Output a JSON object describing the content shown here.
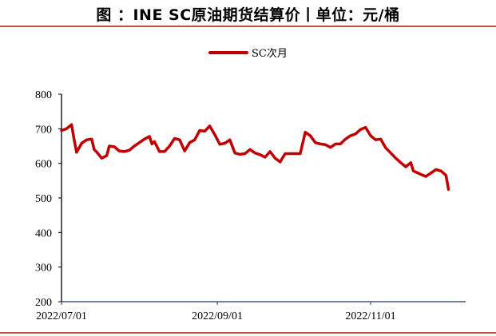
{
  "title": "图   ：INE SC原油期货结算价丨单位：元/桶",
  "legend": {
    "items": [
      {
        "label": "SC次月",
        "color": "#c00000"
      }
    ]
  },
  "colors": {
    "line": "#c00000",
    "rule": "#c0504d",
    "axis": "#000000",
    "xaxis": "#1f3864"
  },
  "chart_data": {
    "type": "line",
    "title": "INE SC原油期货结算价丨单位：元/桶",
    "xlabel": "",
    "ylabel": "元/桶",
    "ylim": [
      200,
      800
    ],
    "yticks": [
      200,
      300,
      400,
      500,
      600,
      700,
      800
    ],
    "xticks": [
      "2022/07/01",
      "2022/09/01",
      "2022/11/01"
    ],
    "grid": false,
    "legend_position": "top",
    "series": [
      {
        "name": "SC次月",
        "x": [
          "2022/07/01",
          "2022/07/03",
          "2022/07/05",
          "2022/07/06",
          "2022/07/07",
          "2022/07/09",
          "2022/07/11",
          "2022/07/13",
          "2022/07/14",
          "2022/07/15",
          "2022/07/17",
          "2022/07/19",
          "2022/07/20",
          "2022/07/22",
          "2022/07/24",
          "2022/07/26",
          "2022/07/28",
          "2022/07/30",
          "2022/08/01",
          "2022/08/03",
          "2022/08/05",
          "2022/08/06",
          "2022/08/07",
          "2022/08/09",
          "2022/08/11",
          "2022/08/13",
          "2022/08/15",
          "2022/08/17",
          "2022/08/19",
          "2022/08/21",
          "2022/08/23",
          "2022/08/25",
          "2022/08/27",
          "2022/08/29",
          "2022/08/31",
          "2022/09/02",
          "2022/09/04",
          "2022/09/06",
          "2022/09/08",
          "2022/09/10",
          "2022/09/12",
          "2022/09/14",
          "2022/09/16",
          "2022/09/18",
          "2022/09/20",
          "2022/09/22",
          "2022/09/24",
          "2022/09/26",
          "2022/09/28",
          "2022/09/30",
          "2022/10/02",
          "2022/10/04",
          "2022/10/06",
          "2022/10/08",
          "2022/10/10",
          "2022/10/12",
          "2022/10/14",
          "2022/10/16",
          "2022/10/18",
          "2022/10/20",
          "2022/10/22",
          "2022/10/24",
          "2022/10/26",
          "2022/10/28",
          "2022/10/30",
          "2022/11/01",
          "2022/11/03",
          "2022/11/05",
          "2022/11/07",
          "2022/11/09",
          "2022/11/11",
          "2022/11/13",
          "2022/11/15",
          "2022/11/17",
          "2022/11/18",
          "2022/11/19",
          "2022/11/21",
          "2022/11/23",
          "2022/11/25",
          "2022/11/27",
          "2022/11/29",
          "2022/11/30",
          "2022/12/01",
          "2022/12/02"
        ],
        "values": [
          695,
          700,
          712,
          670,
          632,
          658,
          668,
          670,
          640,
          633,
          615,
          622,
          650,
          648,
          636,
          634,
          638,
          650,
          660,
          670,
          678,
          656,
          663,
          634,
          634,
          650,
          672,
          668,
          636,
          660,
          668,
          695,
          693,
          708,
          683,
          655,
          658,
          668,
          630,
          626,
          628,
          640,
          630,
          625,
          618,
          634,
          615,
          604,
          628,
          628,
          628,
          628,
          690,
          680,
          660,
          656,
          654,
          646,
          656,
          656,
          670,
          680,
          685,
          698,
          704,
          680,
          668,
          670,
          645,
          630,
          615,
          602,
          590,
          602,
          578,
          575,
          568,
          562,
          572,
          582,
          578,
          572,
          565,
          525
        ]
      }
    ]
  }
}
